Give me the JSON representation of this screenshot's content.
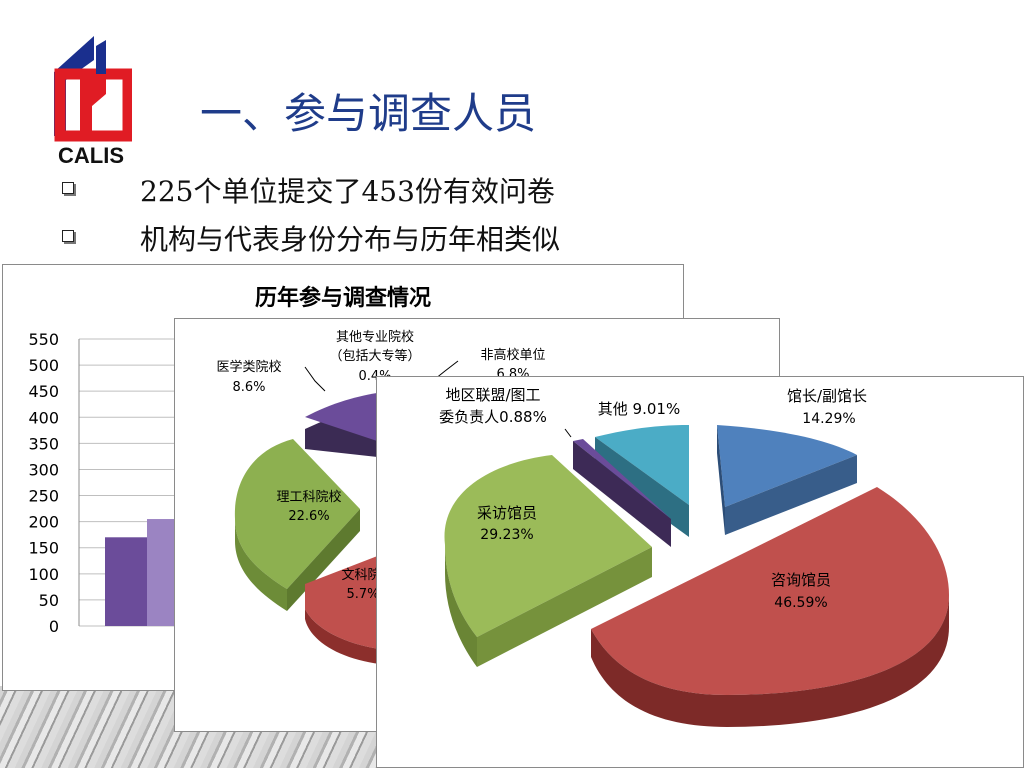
{
  "slide": {
    "title": "一、参与调查人员",
    "bullets": [
      "225个单位提交了453份有效问卷",
      "机构与代表身份分布与历年相类似"
    ]
  },
  "logo": {
    "text": "CALIS"
  },
  "colors": {
    "title_blue": "#1f3c8a",
    "logo_red": "#e01c24",
    "logo_blue": "#1a2f8e",
    "purple": "#6b4c9a",
    "green": "#8db050",
    "red": "#c0504d",
    "blue": "#4f81bd",
    "teal": "#4bacc6",
    "dark_purple": "#3d2a56"
  },
  "chart_data": [
    {
      "type": "bar",
      "title": "历年参与调查情况",
      "ylim": [
        0,
        550
      ],
      "yticks": [
        "0",
        "50",
        "100",
        "150",
        "200",
        "250",
        "300",
        "350",
        "400",
        "450",
        "500",
        "550"
      ],
      "series": [
        {
          "values": [
            170
          ]
        },
        {
          "values": [
            205
          ]
        }
      ]
    },
    {
      "type": "pie",
      "slices": [
        {
          "label": "医学类院校",
          "value_label": "8.6%"
        },
        {
          "label": "其他专业院校",
          "sub_label": "（包括大专等）",
          "value_label": "0.4%"
        },
        {
          "label": "非高校单位",
          "value_label": "6.8%"
        },
        {
          "label": "理工科院校",
          "value_label": "22.6%"
        },
        {
          "label": "文科院",
          "value_label": "5.7%"
        }
      ]
    },
    {
      "type": "pie",
      "slices": [
        {
          "label": "馆长/副馆长",
          "value": 14.29,
          "value_label": "14.29%"
        },
        {
          "label": "咨询馆员",
          "value": 46.59,
          "value_label": "46.59%"
        },
        {
          "label": "采访馆员",
          "value": 29.23,
          "value_label": "29.23%"
        },
        {
          "label": "地区联盟/图工",
          "label2": "委负责人0.88%",
          "value": 0.88
        },
        {
          "label": "其他 9.01%",
          "value": 9.01
        }
      ]
    }
  ]
}
